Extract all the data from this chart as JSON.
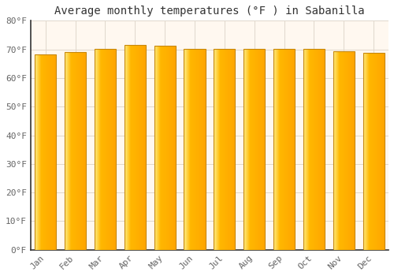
{
  "title": "Average monthly temperatures (°F ) in Sabanilla",
  "months": [
    "Jan",
    "Feb",
    "Mar",
    "Apr",
    "May",
    "Jun",
    "Jul",
    "Aug",
    "Sep",
    "Oct",
    "Nov",
    "Dec"
  ],
  "values": [
    68.2,
    69.0,
    70.2,
    71.6,
    71.4,
    70.3,
    70.2,
    70.2,
    70.2,
    70.2,
    69.4,
    68.9
  ],
  "ylim": [
    0,
    80
  ],
  "yticks": [
    0,
    10,
    20,
    30,
    40,
    50,
    60,
    70,
    80
  ],
  "ytick_labels": [
    "0°F",
    "10°F",
    "20°F",
    "30°F",
    "40°F",
    "50°F",
    "60°F",
    "70°F",
    "80°F"
  ],
  "bar_color_left": "#FFEE88",
  "bar_color_mid": "#FFB700",
  "bar_color_right": "#FFA500",
  "bar_edge_color": "#C8880A",
  "background_color": "#FFFFFF",
  "plot_bg_color": "#FFF8F0",
  "grid_color": "#E0D8CC",
  "title_fontsize": 10,
  "tick_fontsize": 8,
  "title_color": "#333333",
  "tick_color": "#666666",
  "font_family": "monospace",
  "bar_width": 0.72,
  "n_grad": 200
}
